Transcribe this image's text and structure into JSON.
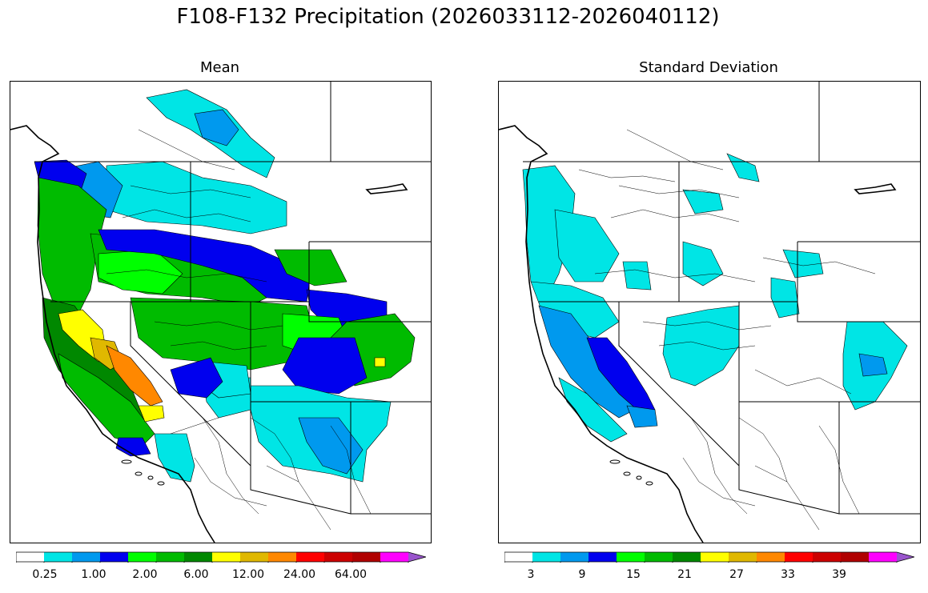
{
  "figure": {
    "title": "F108-F132 Precipitation (2026033112-2026040112)"
  },
  "colors": {
    "levels": [
      "#ffffff",
      "#00e5e5",
      "#0099ee",
      "#0000ee",
      "#00ff00",
      "#00bb00",
      "#008800",
      "#ffff00",
      "#e0b800",
      "#ff8800",
      "#ff0000",
      "#cc0000",
      "#b00000",
      "#ff00ff",
      "#9955cc"
    ]
  },
  "panels": [
    {
      "title": "Mean",
      "colorbar": {
        "ticks": [
          "0.25",
          "1.00",
          "2.00",
          "6.00",
          "12.00",
          "24.00",
          "64.00"
        ],
        "extend": "max"
      }
    },
    {
      "title": "Standard Deviation",
      "colorbar": {
        "ticks": [
          "3",
          "9",
          "15",
          "21",
          "27",
          "33",
          "39"
        ],
        "extend": "max"
      }
    }
  ]
}
